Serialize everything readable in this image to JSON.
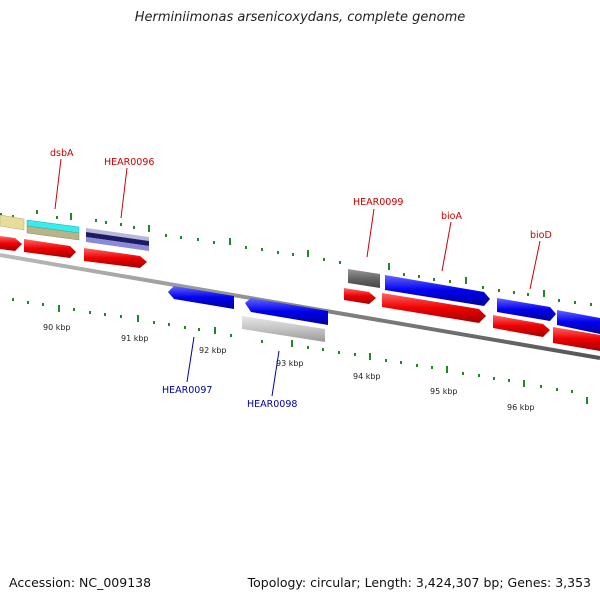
{
  "title": "Herminiimonas arsenicoxydans, complete genome",
  "footer": {
    "accession": "Accession: NC_009138",
    "topology": "Topology: circular; Length: 3,424,307 bp; Genes: 3,353"
  },
  "ticks": [
    "90 kbp",
    "91 kbp",
    "92 kbp",
    "93 kbp",
    "94 kbp",
    "95 kbp",
    "96 kbp"
  ],
  "genes": [
    {
      "name": "dsbA",
      "strand": "forward"
    },
    {
      "name": "HEAR0096",
      "strand": "forward"
    },
    {
      "name": "HEAR0097",
      "strand": "reverse"
    },
    {
      "name": "HEAR0098",
      "strand": "reverse"
    },
    {
      "name": "HEAR0099",
      "strand": "forward"
    },
    {
      "name": "bioA",
      "strand": "forward"
    },
    {
      "name": "bioD",
      "strand": "forward"
    }
  ],
  "colors": {
    "forward_label": "#cc0000",
    "reverse_label": "#0000aa",
    "cds": "#ee0000",
    "gene_forward_cds": "#0000ee",
    "backbone": "#888888",
    "tick": "#228822"
  }
}
